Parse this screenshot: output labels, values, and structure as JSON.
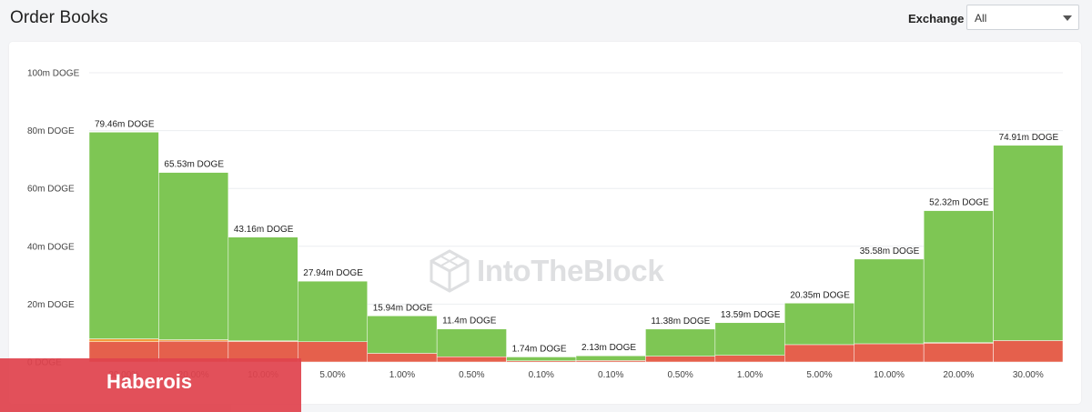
{
  "header": {
    "title": "Order Books",
    "exchange_label": "Exchange",
    "exchange_value": "All"
  },
  "watermark": {
    "text": "IntoTheBlock",
    "icon": "cube-logo-icon"
  },
  "banner": {
    "text": "Haberois",
    "color": "#e0434e"
  },
  "colors": {
    "bid_green": "#7ec654",
    "ask_red": "#e5604c",
    "orange_strip": "#f39c3a"
  },
  "chart_data": {
    "type": "bar",
    "stacked": true,
    "title": "",
    "xlabel": "",
    "ylabel": "",
    "ylim": [
      0,
      100
    ],
    "y_unit": "m DOGE",
    "y_ticks": [
      "0 DOGE",
      "20m DOGE",
      "40m DOGE",
      "60m DOGE",
      "80m DOGE",
      "100m DOGE"
    ],
    "grid": true,
    "categories": [
      "30.00%",
      "20.00%",
      "10.00%",
      "5.00%",
      "1.00%",
      "0.50%",
      "0.10%",
      "0.10%",
      "0.50%",
      "1.00%",
      "5.00%",
      "10.00%",
      "20.00%",
      "30.00%"
    ],
    "totals": [
      79.46,
      65.53,
      43.16,
      27.94,
      15.94,
      11.4,
      1.74,
      2.13,
      11.38,
      13.59,
      20.35,
      35.58,
      52.32,
      74.91
    ],
    "data_labels": [
      "79.46m DOGE",
      "65.53m DOGE",
      "43.16m DOGE",
      "27.94m DOGE",
      "15.94m DOGE",
      "11.4m DOGE",
      "1.74m DOGE",
      "2.13m DOGE",
      "11.38m DOGE",
      "13.59m DOGE",
      "20.35m DOGE",
      "35.58m DOGE",
      "52.32m DOGE",
      "74.91m DOGE"
    ],
    "series": [
      {
        "color": "#e5604c",
        "values": [
          7.0,
          7.2,
          7.1,
          7.0,
          3.0,
          1.8,
          0.4,
          0.5,
          2.0,
          2.3,
          6.0,
          6.3,
          6.5,
          7.4
        ]
      },
      {
        "color": "#f39c3a",
        "values": [
          1.0,
          0.5,
          0.2,
          0,
          0,
          0,
          0,
          0,
          0,
          0,
          0,
          0,
          0.2,
          0
        ]
      },
      {
        "color": "#7ec654",
        "values": [
          71.46,
          57.83,
          35.86,
          20.94,
          12.94,
          9.6,
          1.34,
          1.63,
          9.38,
          11.29,
          14.35,
          29.28,
          45.62,
          67.51
        ]
      }
    ]
  }
}
